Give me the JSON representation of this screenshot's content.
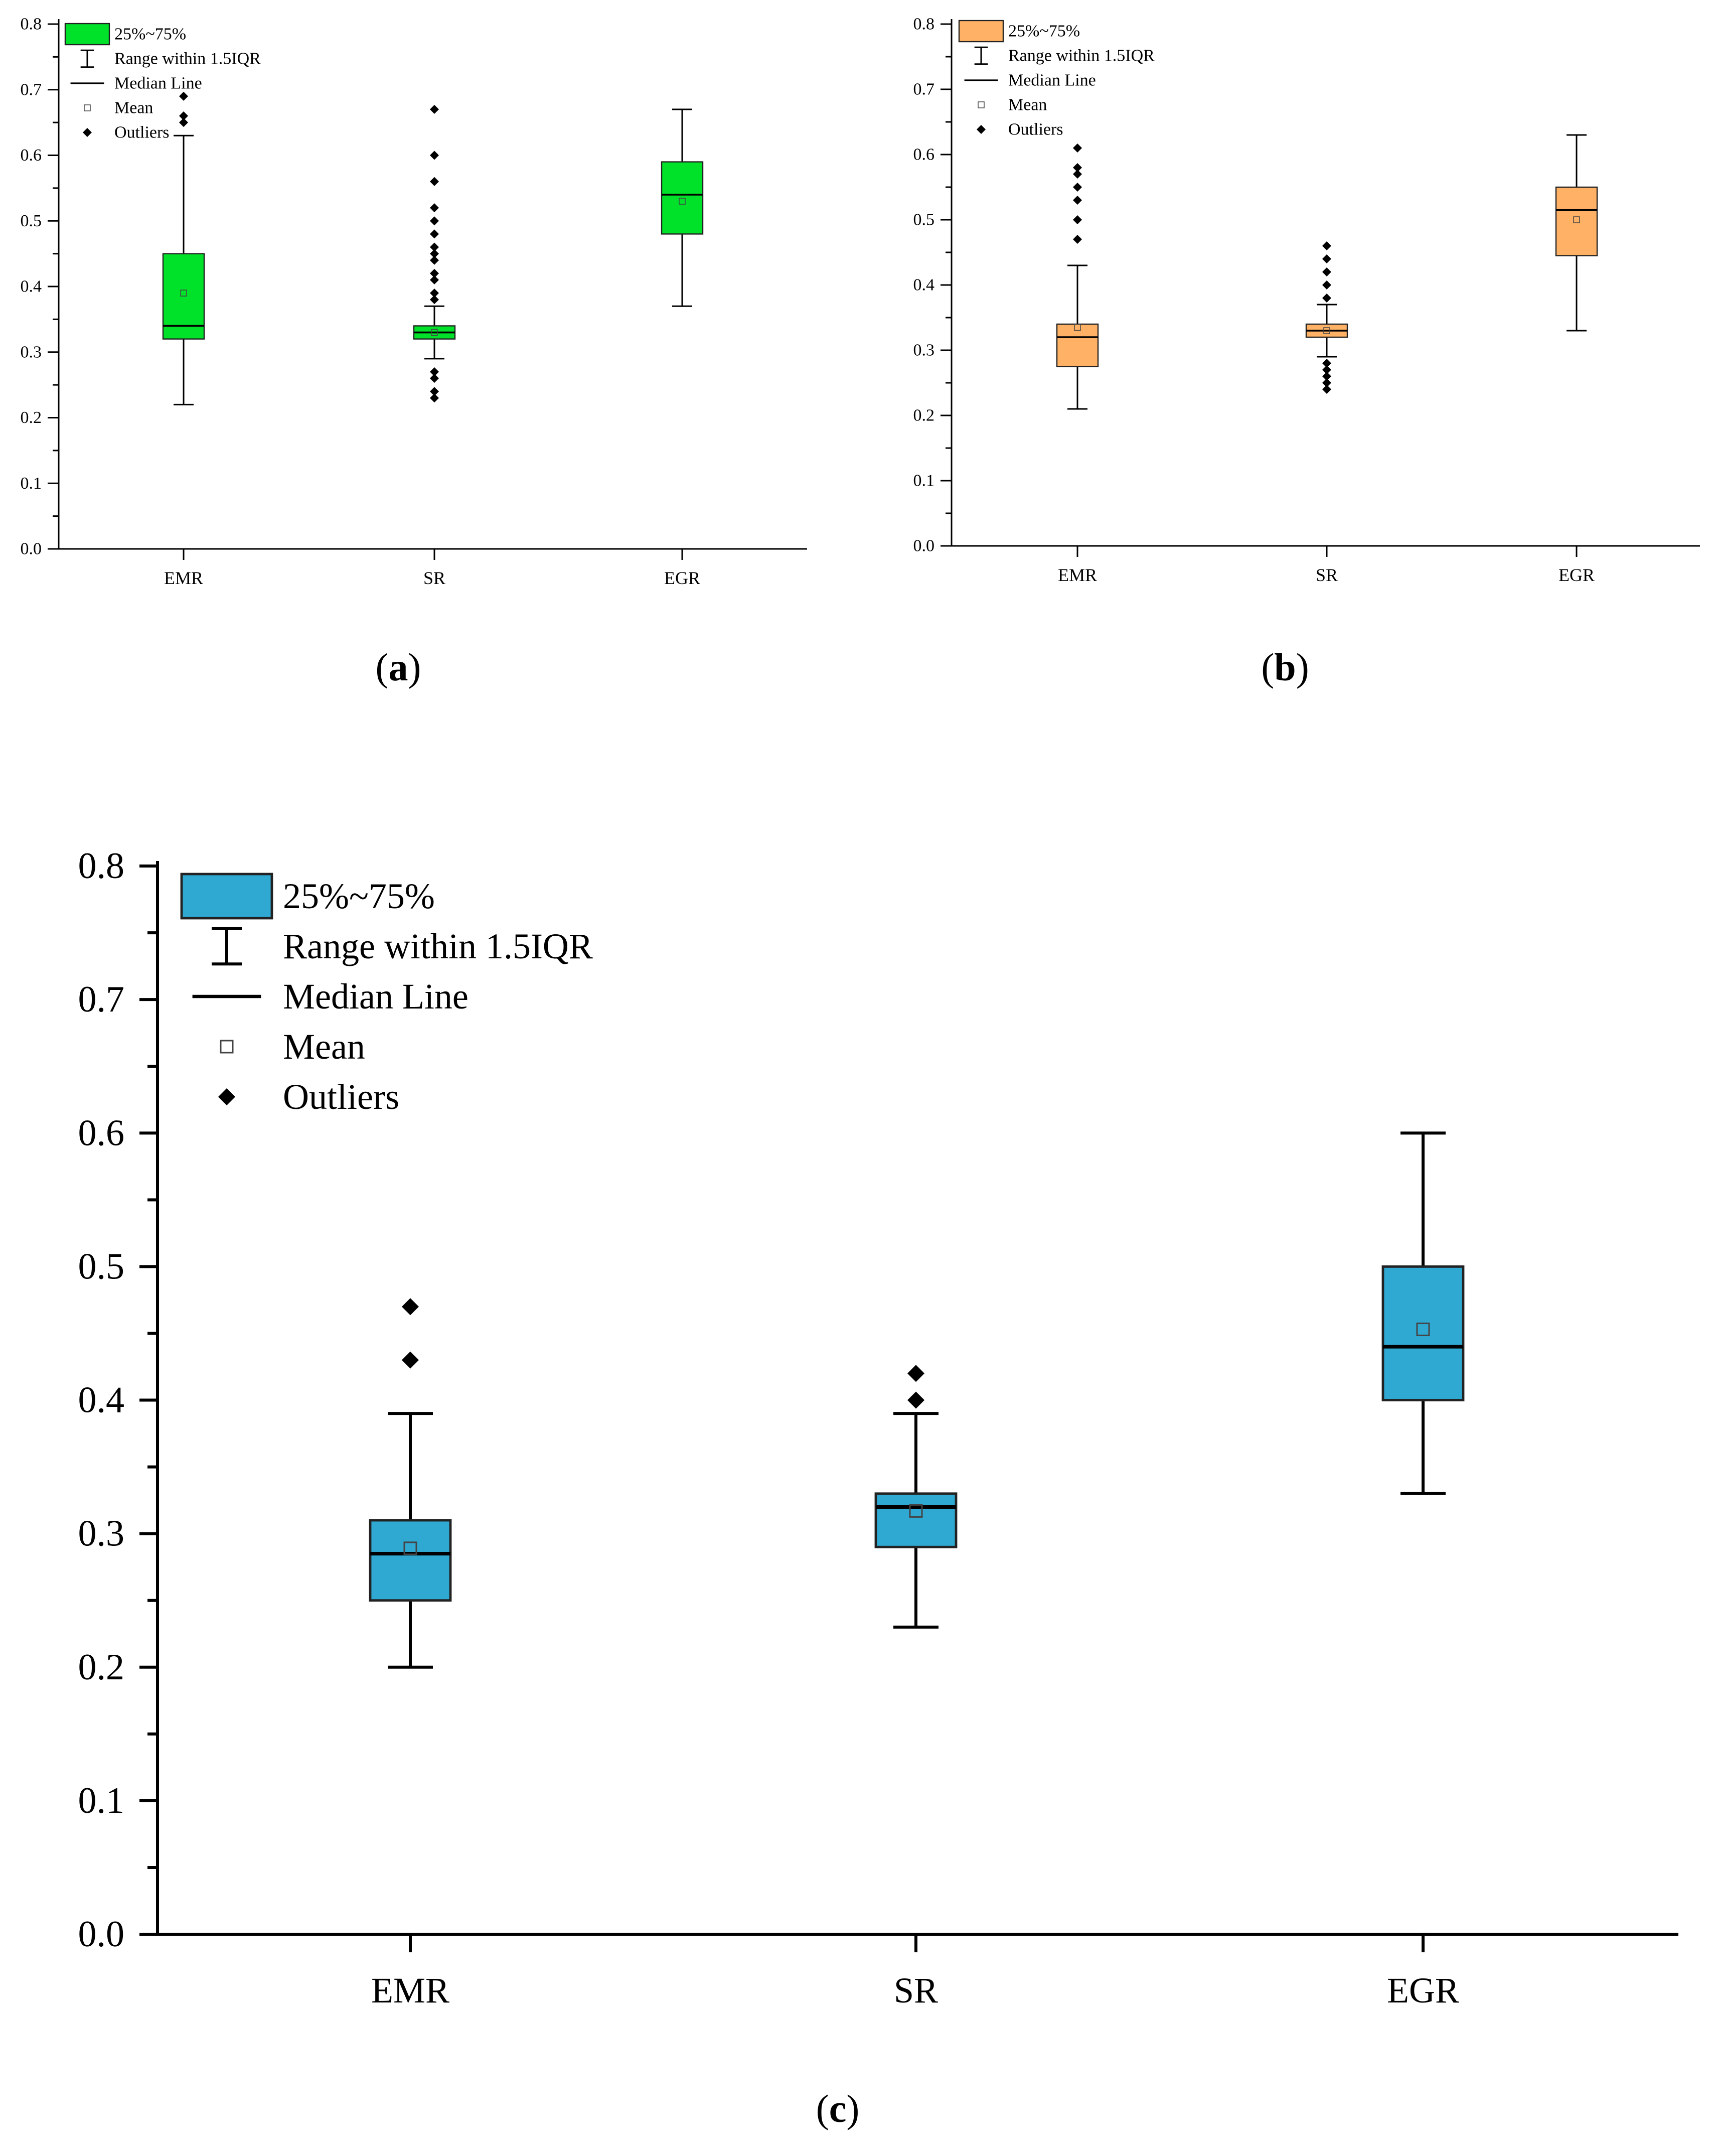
{
  "chart_data": [
    {
      "type": "box",
      "panel_label": "a",
      "ylim": [
        0,
        0.8
      ],
      "yticks": [
        0.0,
        0.1,
        0.2,
        0.3,
        0.4,
        0.5,
        0.6,
        0.7,
        0.8
      ],
      "ytick_labels": [
        "0.0",
        "0.1",
        "0.2",
        "0.3",
        "0.4",
        "0.5",
        "0.6",
        "0.7",
        "0.8"
      ],
      "categories": [
        "EMR",
        "SR",
        "EGR"
      ],
      "box_color": "#00e12a",
      "legend": {
        "position": "top-left",
        "entries": [
          "25%~75%",
          "Range within 1.5IQR",
          "Median Line",
          "Mean",
          "Outliers"
        ]
      },
      "boxes": [
        {
          "category": "EMR",
          "q1": 0.32,
          "median": 0.34,
          "q3": 0.45,
          "whisker_low": 0.22,
          "whisker_high": 0.63,
          "mean": 0.39,
          "outliers": [
            0.65,
            0.66,
            0.69
          ]
        },
        {
          "category": "SR",
          "q1": 0.32,
          "median": 0.33,
          "q3": 0.34,
          "whisker_low": 0.29,
          "whisker_high": 0.37,
          "mean": 0.33,
          "outliers": [
            0.23,
            0.24,
            0.26,
            0.27,
            0.38,
            0.39,
            0.41,
            0.42,
            0.44,
            0.45,
            0.46,
            0.48,
            0.5,
            0.52,
            0.56,
            0.6,
            0.67
          ]
        },
        {
          "category": "EGR",
          "q1": 0.48,
          "median": 0.54,
          "q3": 0.59,
          "whisker_low": 0.37,
          "whisker_high": 0.67,
          "mean": 0.53,
          "outliers": []
        }
      ]
    },
    {
      "type": "box",
      "panel_label": "b",
      "ylim": [
        0,
        0.8
      ],
      "yticks": [
        0.0,
        0.1,
        0.2,
        0.3,
        0.4,
        0.5,
        0.6,
        0.7,
        0.8
      ],
      "ytick_labels": [
        "0.0",
        "0.1",
        "0.2",
        "0.3",
        "0.4",
        "0.5",
        "0.6",
        "0.7",
        "0.8"
      ],
      "categories": [
        "EMR",
        "SR",
        "EGR"
      ],
      "box_color": "#ffb266",
      "legend": {
        "position": "top-left",
        "entries": [
          "25%~75%",
          "Range within 1.5IQR",
          "Median Line",
          "Mean",
          "Outliers"
        ]
      },
      "boxes": [
        {
          "category": "EMR",
          "q1": 0.275,
          "median": 0.32,
          "q3": 0.34,
          "whisker_low": 0.21,
          "whisker_high": 0.43,
          "mean": 0.335,
          "outliers": [
            0.47,
            0.5,
            0.53,
            0.55,
            0.57,
            0.58,
            0.61
          ]
        },
        {
          "category": "SR",
          "q1": 0.32,
          "median": 0.33,
          "q3": 0.34,
          "whisker_low": 0.29,
          "whisker_high": 0.37,
          "mean": 0.33,
          "outliers": [
            0.24,
            0.25,
            0.26,
            0.27,
            0.28,
            0.38,
            0.4,
            0.42,
            0.44,
            0.46
          ]
        },
        {
          "category": "EGR",
          "q1": 0.445,
          "median": 0.515,
          "q3": 0.55,
          "whisker_low": 0.33,
          "whisker_high": 0.63,
          "mean": 0.5,
          "outliers": []
        }
      ]
    },
    {
      "type": "box",
      "panel_label": "c",
      "ylim": [
        0,
        0.8
      ],
      "yticks": [
        0.0,
        0.1,
        0.2,
        0.3,
        0.4,
        0.5,
        0.6,
        0.7,
        0.8
      ],
      "ytick_labels": [
        "0.0",
        "0.1",
        "0.2",
        "0.3",
        "0.4",
        "0.5",
        "0.6",
        "0.7",
        "0.8"
      ],
      "categories": [
        "EMR",
        "SR",
        "EGR"
      ],
      "box_color": "#2fa8d2",
      "legend": {
        "position": "top-left",
        "entries": [
          "25%~75%",
          "Range within 1.5IQR",
          "Median Line",
          "Mean",
          "Outliers"
        ]
      },
      "boxes": [
        {
          "category": "EMR",
          "q1": 0.25,
          "median": 0.285,
          "q3": 0.31,
          "whisker_low": 0.2,
          "whisker_high": 0.39,
          "mean": 0.289,
          "outliers": [
            0.43,
            0.47
          ]
        },
        {
          "category": "SR",
          "q1": 0.29,
          "median": 0.32,
          "q3": 0.33,
          "whisker_low": 0.23,
          "whisker_high": 0.39,
          "mean": 0.317,
          "outliers": [
            0.4,
            0.42
          ]
        },
        {
          "category": "EGR",
          "q1": 0.4,
          "median": 0.44,
          "q3": 0.5,
          "whisker_low": 0.33,
          "whisker_high": 0.6,
          "mean": 0.453,
          "outliers": []
        }
      ]
    }
  ]
}
